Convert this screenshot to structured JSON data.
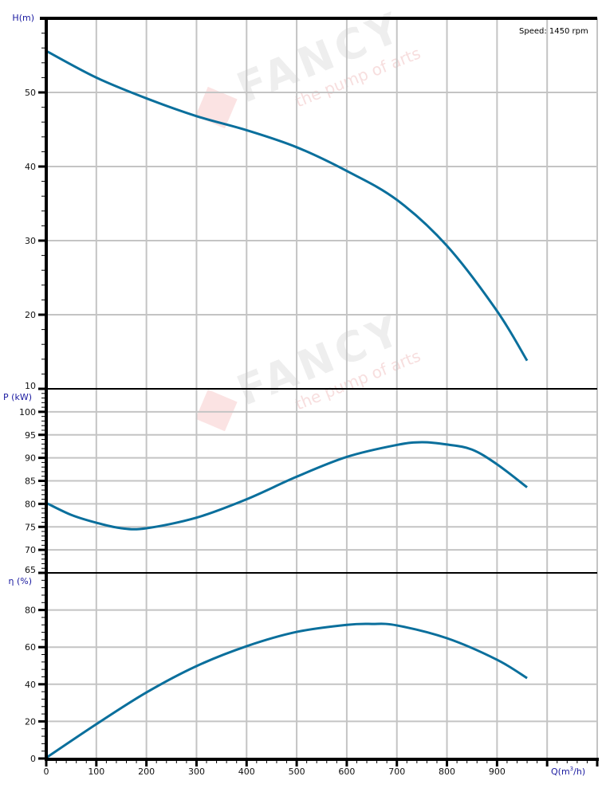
{
  "chart_data": {
    "type": "line",
    "annotation": "Speed: 1450 rpm",
    "watermark": {
      "brand": "FANCY",
      "tagline": "the pump of arts"
    },
    "xlabel": "Q(m³/h)",
    "xlim": [
      0,
      1100
    ],
    "xticks": [
      0,
      100,
      200,
      300,
      400,
      500,
      600,
      700,
      800,
      900
    ],
    "grid": true,
    "line_color": "#0a6f9c",
    "panels": [
      {
        "ylabel": "H(m)",
        "ylim": [
          10,
          60
        ],
        "yticks": [
          10,
          20,
          30,
          40,
          50
        ],
        "x": [
          0,
          100,
          200,
          300,
          400,
          500,
          600,
          700,
          800,
          900,
          960
        ],
        "y": [
          55.6,
          52.0,
          49.2,
          46.8,
          44.9,
          42.6,
          39.4,
          35.5,
          29.3,
          20.5,
          13.8
        ]
      },
      {
        "ylabel": "P (kW)",
        "ylim": [
          65,
          105
        ],
        "yticks": [
          65,
          70,
          75,
          80,
          85,
          90,
          95,
          100
        ],
        "x": [
          0,
          50,
          100,
          150,
          200,
          300,
          400,
          500,
          600,
          700,
          750,
          800,
          850,
          900,
          960
        ],
        "y": [
          80.2,
          77.6,
          75.9,
          74.7,
          74.7,
          77.0,
          81.0,
          85.9,
          90.2,
          92.8,
          93.4,
          92.9,
          91.8,
          88.6,
          83.6
        ]
      },
      {
        "ylabel": "η (%)",
        "ylim": [
          0,
          100
        ],
        "yticks": [
          0,
          20,
          40,
          60,
          80
        ],
        "x": [
          0,
          100,
          200,
          300,
          400,
          500,
          600,
          650,
          700,
          800,
          900,
          960
        ],
        "y": [
          0.4,
          18.5,
          35.6,
          49.8,
          60.5,
          68.2,
          72.0,
          72.5,
          71.7,
          64.8,
          53.2,
          43.3
        ]
      }
    ]
  }
}
